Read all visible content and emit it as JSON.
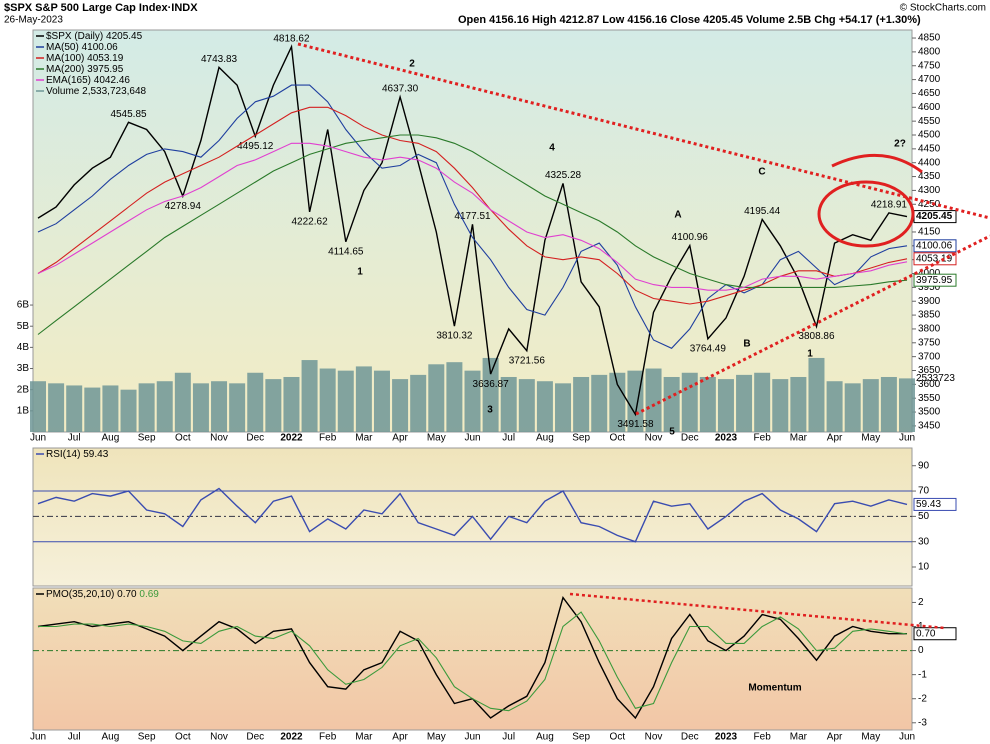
{
  "header": {
    "title": "$SPX S&P 500 Large Cap Index·INDX",
    "date": "26-May-2023",
    "quote": "Open 4156.16 High 4212.87 Low 4156.16 Close 4205.45 Volume 2.5B Chg +54.17 (+1.30%)",
    "credit": "© StockCharts.com"
  },
  "chart_data": [
    {
      "type": "line",
      "categories": [
        "Jun",
        null,
        "Jul",
        null,
        "Aug",
        null,
        "Sep",
        null,
        "Oct",
        null,
        "Nov",
        null,
        "Dec",
        null,
        "2022",
        null,
        "Feb",
        null,
        "Mar",
        null,
        "Apr",
        null,
        "May",
        null,
        "Jun",
        null,
        "Jul",
        null,
        "Aug",
        null,
        "Sep",
        null,
        "Oct",
        null,
        "Nov",
        null,
        "Dec",
        null,
        "2023",
        null,
        "Feb",
        null,
        "Mar",
        null,
        "Apr",
        null,
        "May",
        null,
        "Jun"
      ],
      "series": [
        {
          "name": "$SPX (Daily)",
          "color": "#000000",
          "last_box": true,
          "values": [
            4200,
            4240,
            4320,
            4380,
            4420,
            4545.85,
            4520,
            4440,
            4278.94,
            4480,
            4743.83,
            4680,
            4495.12,
            4680,
            4818.62,
            4222.62,
            4520,
            4114.65,
            4300,
            4400,
            4637.3,
            4400,
            4150,
            3810.32,
            4177.51,
            3636.87,
            3800,
            3721.56,
            4120,
            4325.28,
            3970,
            3880,
            3600,
            3491.58,
            3860,
            3990,
            4100.96,
            3764.49,
            3840,
            3990,
            4195.44,
            4100,
            3980,
            3808.86,
            4110,
            4140,
            4120,
            4218.91,
            4205.45
          ],
          "value_labels": [
            null,
            null,
            null,
            null,
            null,
            "4545.85",
            null,
            null,
            "4278.94",
            null,
            "4743.83",
            null,
            "4495.12",
            null,
            "4818.62",
            "4222.62",
            null,
            "4114.65",
            null,
            null,
            "4637.30",
            null,
            null,
            "3810.32",
            "4177.51",
            "3636.87",
            null,
            "3721.56",
            null,
            "4325.28",
            null,
            null,
            null,
            "3491.58",
            null,
            null,
            "4100.96",
            "3764.49",
            null,
            null,
            "4195.44",
            null,
            null,
            "3808.86",
            null,
            null,
            null,
            "4218.91",
            null
          ]
        },
        {
          "name": "MA(50)",
          "color": "#1f3f9f",
          "last_box": true,
          "values": [
            4150,
            4180,
            4230,
            4280,
            4340,
            4390,
            4430,
            4450,
            4440,
            4420,
            4480,
            4560,
            4620,
            4640,
            4680,
            4680,
            4620,
            4520,
            4440,
            4380,
            4390,
            4430,
            4400,
            4250,
            4130,
            4050,
            3950,
            3870,
            3850,
            3950,
            4080,
            4110,
            4030,
            3880,
            3760,
            3730,
            3800,
            3910,
            3960,
            3930,
            3960,
            4050,
            4080,
            4020,
            3960,
            3990,
            4060,
            4090,
            4100.06
          ]
        },
        {
          "name": "MA(100)",
          "color": "#d42020",
          "last_box": true,
          "values": [
            4000,
            4040,
            4090,
            4140,
            4190,
            4240,
            4290,
            4330,
            4360,
            4390,
            4420,
            4460,
            4500,
            4540,
            4580,
            4600,
            4600,
            4570,
            4530,
            4500,
            4480,
            4470,
            4440,
            4380,
            4310,
            4230,
            4160,
            4100,
            4060,
            4050,
            4060,
            4050,
            4000,
            3940,
            3910,
            3900,
            3890,
            3900,
            3920,
            3940,
            3960,
            3990,
            4010,
            4010,
            3990,
            4000,
            4020,
            4040,
            4053.19
          ]
        },
        {
          "name": "MA(200)",
          "color": "#2a7a2a",
          "last_box": true,
          "values": [
            3780,
            3830,
            3880,
            3930,
            3980,
            4030,
            4080,
            4130,
            4170,
            4210,
            4250,
            4290,
            4330,
            4370,
            4400,
            4430,
            4450,
            4470,
            4480,
            4490,
            4500,
            4500,
            4490,
            4470,
            4440,
            4400,
            4360,
            4320,
            4280,
            4250,
            4220,
            4190,
            4150,
            4100,
            4060,
            4030,
            4000,
            3980,
            3960,
            3950,
            3950,
            3950,
            3950,
            3950,
            3950,
            3955,
            3960,
            3970,
            3975.95
          ]
        },
        {
          "name": "EMA(165)",
          "color": "#e040d0",
          "values": [
            4000,
            4030,
            4070,
            4110,
            4150,
            4190,
            4230,
            4260,
            4280,
            4310,
            4350,
            4390,
            4410,
            4440,
            4470,
            4470,
            4460,
            4440,
            4420,
            4410,
            4420,
            4410,
            4380,
            4330,
            4290,
            4230,
            4190,
            4150,
            4130,
            4140,
            4120,
            4090,
            4040,
            3980,
            3960,
            3950,
            3950,
            3940,
            3940,
            3950,
            3980,
            3990,
            3990,
            3980,
            3990,
            4000,
            4010,
            4030,
            4042.46
          ]
        },
        {
          "name": "Volume",
          "color": "#6f9796",
          "type": "bar",
          "axis": "y2",
          "value_box_label": "2533723",
          "values": [
            2.4,
            2.3,
            2.2,
            2.1,
            2.2,
            2.0,
            2.3,
            2.4,
            2.8,
            2.3,
            2.4,
            2.3,
            2.8,
            2.5,
            2.6,
            3.4,
            3.0,
            2.9,
            3.1,
            2.9,
            2.5,
            2.7,
            3.2,
            3.3,
            2.9,
            3.5,
            2.6,
            2.5,
            2.4,
            2.3,
            2.6,
            2.7,
            2.8,
            2.9,
            3.0,
            2.6,
            2.8,
            2.6,
            2.5,
            2.7,
            2.8,
            2.5,
            2.6,
            3.5,
            2.4,
            2.3,
            2.5,
            2.6,
            2.533723648
          ],
          "value_labels": [
            null,
            null,
            null,
            null,
            null,
            null,
            null,
            null,
            null,
            null,
            null,
            null,
            null,
            null,
            null,
            null,
            null,
            null,
            null,
            null,
            null,
            null,
            null,
            null,
            null,
            null,
            null,
            null,
            null,
            null,
            null,
            null,
            null,
            null,
            null,
            null,
            null,
            null,
            null,
            null,
            null,
            null,
            null,
            null,
            null,
            null,
            null,
            null,
            "2,533,723,648"
          ]
        }
      ],
      "ylim": [
        3428,
        4879
      ],
      "yticks": [
        3450,
        3500,
        3550,
        3600,
        3650,
        3700,
        3750,
        3800,
        3850,
        3900,
        3950,
        4000,
        4050,
        4100,
        4150,
        4200,
        4250,
        4300,
        4350,
        4400,
        4450,
        4500,
        4550,
        4600,
        4650,
        4700,
        4750,
        4800,
        4850
      ],
      "y2lim": [
        0,
        19
      ],
      "y2ticks": [
        {
          "value": 1,
          "label": "1B"
        },
        {
          "value": 2,
          "label": "2B"
        },
        {
          "value": 3,
          "label": "3B"
        },
        {
          "value": 4,
          "label": "4B"
        },
        {
          "value": 5,
          "label": "5B"
        },
        {
          "value": 6,
          "label": "6B"
        }
      ],
      "annotations": [
        "1",
        "2",
        "3",
        "4",
        "5",
        "A",
        "B",
        "C",
        "1",
        "2?"
      ]
    },
    {
      "type": "line",
      "series": [
        {
          "name": "RSI(14)",
          "color": "#3a4cb0",
          "last_box": true,
          "values": [
            60,
            65,
            62,
            68,
            66,
            70,
            55,
            52,
            42,
            63,
            72,
            58,
            45,
            62,
            66,
            38,
            48,
            40,
            55,
            52,
            68,
            45,
            40,
            35,
            50,
            32,
            50,
            45,
            62,
            70,
            45,
            42,
            35,
            30,
            62,
            58,
            60,
            40,
            50,
            62,
            68,
            55,
            48,
            38,
            60,
            62,
            58,
            63,
            59.43
          ]
        }
      ],
      "ylim": [
        -5,
        104
      ],
      "yticks": [
        10,
        30,
        50,
        70,
        90
      ],
      "reference_lines": [
        30,
        50,
        70
      ]
    },
    {
      "type": "line",
      "categories": [
        "Jun",
        null,
        "Jul",
        null,
        "Aug",
        null,
        "Sep",
        null,
        "Oct",
        null,
        "Nov",
        null,
        "Dec",
        null,
        "2022",
        null,
        "Feb",
        null,
        "Mar",
        null,
        "Apr",
        null,
        "May",
        null,
        "Jun",
        null,
        "Jul",
        null,
        "Aug",
        null,
        "Sep",
        null,
        "Oct",
        null,
        "Nov",
        null,
        "Dec",
        null,
        "2023",
        null,
        "Feb",
        null,
        "Mar",
        null,
        "Apr",
        null,
        "May",
        null,
        "Jun"
      ],
      "series": [
        {
          "name": "PMO(35,20,10)",
          "color": "#000000",
          "last_box": true,
          "values": [
            1.0,
            1.1,
            1.2,
            1.0,
            1.1,
            1.2,
            0.9,
            0.6,
            0.0,
            0.6,
            1.2,
            0.9,
            0.3,
            0.8,
            0.9,
            -0.5,
            -1.5,
            -1.6,
            -0.8,
            -0.5,
            0.8,
            0.4,
            -1.0,
            -2.2,
            -2.0,
            -2.8,
            -2.3,
            -1.9,
            -0.5,
            2.2,
            1.2,
            -0.5,
            -2.0,
            -2.8,
            -1.5,
            0.5,
            1.5,
            0.4,
            0.0,
            0.6,
            1.5,
            1.3,
            0.5,
            -0.4,
            0.6,
            1.0,
            0.8,
            0.7,
            0.7
          ],
          "value_labels": [
            null,
            null,
            null,
            null,
            null,
            null,
            null,
            null,
            null,
            null,
            null,
            null,
            null,
            null,
            null,
            null,
            null,
            null,
            null,
            null,
            null,
            null,
            null,
            null,
            null,
            null,
            null,
            null,
            null,
            null,
            null,
            null,
            null,
            null,
            null,
            null,
            null,
            null,
            null,
            null,
            null,
            null,
            null,
            null,
            null,
            null,
            null,
            null,
            "0.70"
          ]
        },
        {
          "color": "#3c9a3c",
          "values": [
            1.0,
            1.0,
            1.1,
            1.1,
            1.0,
            1.1,
            1.0,
            0.8,
            0.4,
            0.3,
            0.8,
            1.0,
            0.6,
            0.5,
            0.8,
            0.2,
            -0.8,
            -1.4,
            -1.2,
            -0.7,
            0.2,
            0.5,
            -0.3,
            -1.5,
            -2.0,
            -2.4,
            -2.5,
            -2.1,
            -1.2,
            1.0,
            1.6,
            0.4,
            -1.1,
            -2.4,
            -2.2,
            -0.5,
            1.0,
            1.0,
            0.3,
            0.3,
            1.0,
            1.4,
            0.9,
            0.0,
            0.1,
            0.8,
            0.9,
            0.8,
            0.69
          ]
        }
      ],
      "ylim": [
        -3.3,
        2.6
      ],
      "yticks": [
        -3,
        -2,
        -1,
        0,
        1,
        2
      ],
      "reference_lines": [
        0
      ],
      "annotations": [
        "Momentum"
      ]
    }
  ]
}
